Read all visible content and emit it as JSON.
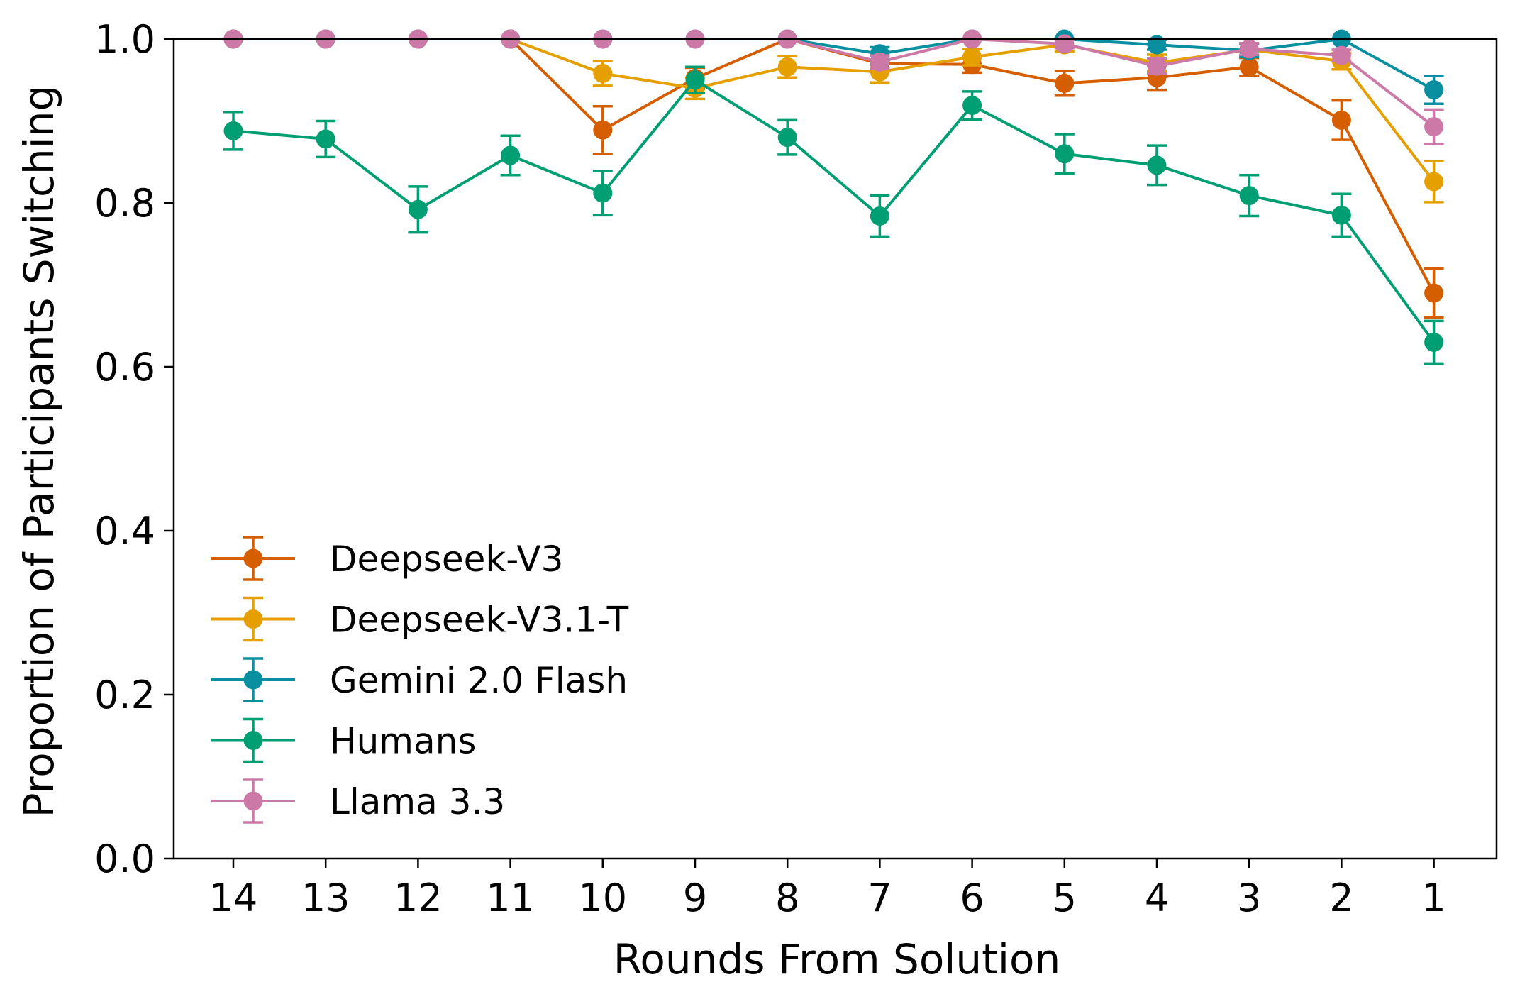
{
  "chart_data": {
    "type": "line",
    "title": "",
    "xlabel": "Rounds From Solution",
    "ylabel": "Proportion of Participants Switching",
    "x": [
      14,
      13,
      12,
      11,
      10,
      9,
      8,
      7,
      6,
      5,
      4,
      3,
      2,
      1
    ],
    "x_tick_labels": [
      "14",
      "13",
      "12",
      "11",
      "10",
      "9",
      "8",
      "7",
      "6",
      "5",
      "4",
      "3",
      "2",
      "1"
    ],
    "ylim": [
      0.0,
      1.0
    ],
    "y_ticks": [
      0.0,
      0.2,
      0.4,
      0.6,
      0.8,
      1.0
    ],
    "y_tick_labels": [
      "0.0",
      "0.2",
      "0.4",
      "0.6",
      "0.8",
      "1.0"
    ],
    "grid": false,
    "legend_position": "lower-left",
    "error_bars": true,
    "series": [
      {
        "name": "Deepseek-V3",
        "color": "#d55e00",
        "values": [
          1.0,
          1.0,
          1.0,
          1.0,
          0.889,
          0.952,
          1.0,
          0.97,
          0.969,
          0.946,
          0.953,
          0.966,
          0.901,
          0.69
        ],
        "errors": [
          0.0,
          0.0,
          0.0,
          0.0,
          0.029,
          0.013,
          0.0,
          0.01,
          0.01,
          0.015,
          0.015,
          0.011,
          0.024,
          0.03
        ]
      },
      {
        "name": "Deepseek-V3.1-T",
        "color": "#e69f00",
        "values": [
          1.0,
          1.0,
          1.0,
          1.0,
          0.958,
          0.94,
          0.966,
          0.96,
          0.978,
          0.993,
          0.971,
          0.987,
          0.973,
          0.826
        ],
        "errors": [
          0.0,
          0.0,
          0.0,
          0.0,
          0.015,
          0.013,
          0.013,
          0.013,
          0.01,
          0.008,
          0.01,
          0.008,
          0.01,
          0.025
        ]
      },
      {
        "name": "Gemini 2.0 Flash",
        "color": "#0a8fa0",
        "values": [
          1.0,
          1.0,
          1.0,
          1.0,
          1.0,
          1.0,
          1.0,
          0.982,
          1.0,
          1.0,
          0.993,
          0.986,
          1.0,
          0.938
        ],
        "errors": [
          0.0,
          0.0,
          0.0,
          0.0,
          0.0,
          0.0,
          0.0,
          0.008,
          0.0,
          0.0,
          0.006,
          0.008,
          0.0,
          0.017
        ]
      },
      {
        "name": "Humans",
        "color": "#009e73",
        "values": [
          0.888,
          0.878,
          0.792,
          0.858,
          0.812,
          0.95,
          0.88,
          0.784,
          0.919,
          0.86,
          0.846,
          0.809,
          0.785,
          0.63
        ],
        "errors": [
          0.023,
          0.022,
          0.028,
          0.024,
          0.027,
          0.016,
          0.021,
          0.025,
          0.017,
          0.024,
          0.024,
          0.025,
          0.026,
          0.026
        ]
      },
      {
        "name": "Llama 3.3",
        "color": "#cc79a7",
        "values": [
          1.0,
          1.0,
          1.0,
          1.0,
          1.0,
          1.0,
          1.0,
          0.972,
          1.0,
          0.994,
          0.967,
          0.988,
          0.98,
          0.893
        ],
        "errors": [
          0.0,
          0.0,
          0.0,
          0.0,
          0.0,
          0.0,
          0.0,
          0.008,
          0.0,
          0.005,
          0.009,
          0.007,
          0.007,
          0.021
        ]
      }
    ]
  }
}
